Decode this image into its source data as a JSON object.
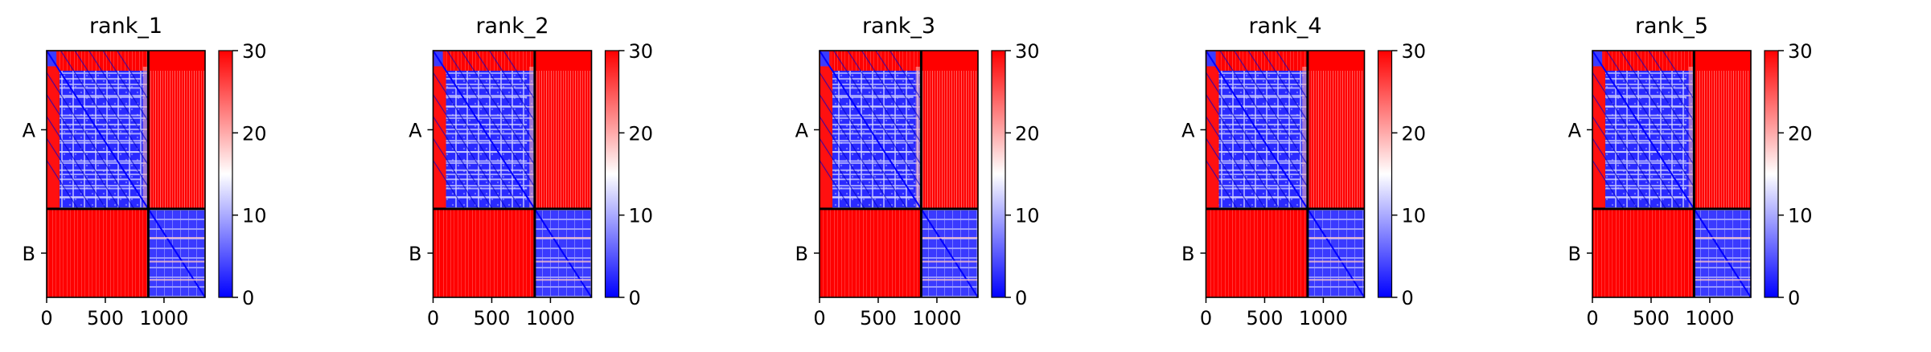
{
  "figure": {
    "background": "#ffffff"
  },
  "chart_data": {
    "type": "heatmap",
    "description_colormap": "bwr",
    "colormap": {
      "low": "#0000ff",
      "mid": "#ffffff",
      "high": "#ff0000",
      "vmin": 0,
      "vmax": 30
    },
    "colorbar_ticks": [
      "0",
      "10",
      "20",
      "30"
    ],
    "xticks": {
      "values": [
        0,
        500,
        1000
      ],
      "labels": [
        "0",
        "500",
        "1000"
      ]
    },
    "xlim": [
      0,
      1350
    ],
    "chain_boundary": 866,
    "chains": [
      {
        "label": "A",
        "start": 0,
        "end": 866
      },
      {
        "label": "B",
        "start": 866,
        "end": 1350
      }
    ],
    "block_mean_values": {
      "A-A": 5,
      "A-B": 30,
      "B-A": 30,
      "B-B": 5
    },
    "panels": [
      {
        "title": "rank_1"
      },
      {
        "title": "rank_2"
      },
      {
        "title": "rank_3"
      },
      {
        "title": "rank_4"
      },
      {
        "title": "rank_5"
      }
    ]
  }
}
